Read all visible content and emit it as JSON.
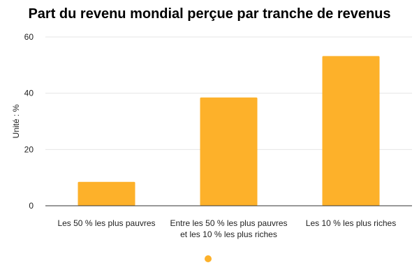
{
  "chart_data": {
    "type": "bar",
    "title": "Part du revenu mondial perçue par tranche de revenus",
    "xlabel": "",
    "ylabel": "Unité : %",
    "categories": [
      [
        "Les 50 % les plus pauvres"
      ],
      [
        "Entre les 50 % les plus pauvres",
        "et les 10 % les plus riches"
      ],
      [
        "Les 10 % les plus riches"
      ]
    ],
    "values": [
      8.5,
      38.5,
      53.2
    ],
    "ylim": [
      0,
      60
    ],
    "yticks": [
      "0",
      "20",
      "40",
      "60"
    ],
    "grid": true,
    "legend": "bottom",
    "bar_color": "#FDB12A",
    "grid_color": "#E5E5E5",
    "axis_color": "#333333"
  }
}
